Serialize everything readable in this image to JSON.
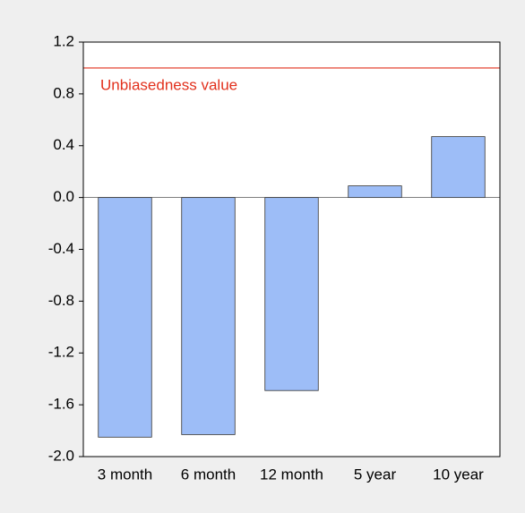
{
  "chart_data": {
    "type": "bar",
    "categories": [
      "3 month",
      "6 month",
      "12 month",
      "5 year",
      "10 year"
    ],
    "values": [
      -1.85,
      -1.83,
      -1.49,
      0.09,
      0.47
    ],
    "color": "#9dbdf7",
    "ylim": [
      -2.0,
      1.2
    ],
    "yticks": [
      {
        "value": -2.0,
        "label": "-2.0"
      },
      -1.6,
      -1.2,
      -0.8,
      -0.4,
      {
        "value": 0,
        "label": "0.0"
      },
      0.4,
      0.8,
      1.2
    ],
    "reference_line": {
      "value": 1.0,
      "label": "Unbiasedness value",
      "color": "#e2311d"
    },
    "grid": false
  }
}
